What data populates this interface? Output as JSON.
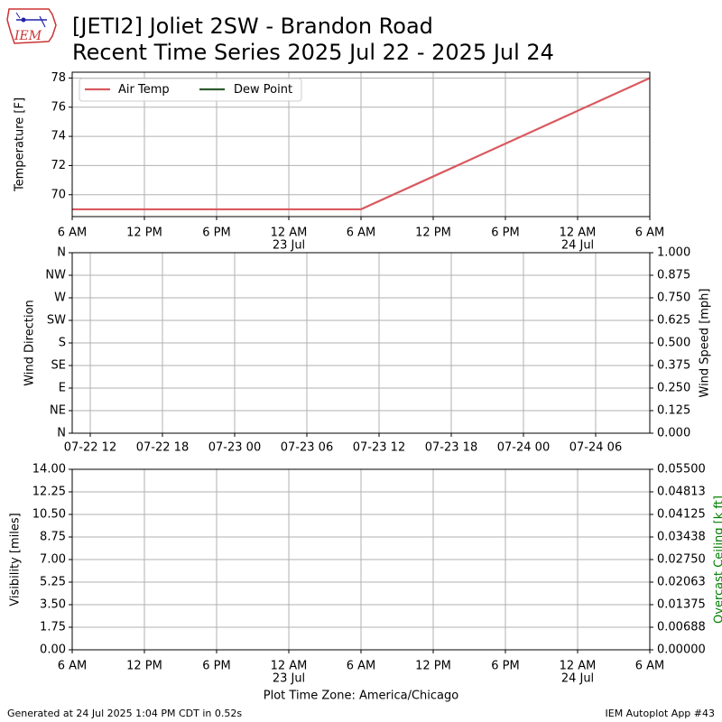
{
  "title_line1": "[JETI2] Joliet 2SW - Brandon Road",
  "title_line2": "Recent Time Series 2025 Jul 22 - 2025 Jul 24",
  "logo_text": "IEM",
  "footer_left": "Generated at 24 Jul 2025 1:04 PM CDT in 0.52s",
  "footer_right": "IEM Autoplot App #43",
  "xlabel": "Plot Time Zone: America/Chicago",
  "colors": {
    "air_temp": "#d9595f",
    "dew_point": "#2e5c2e",
    "grid": "#b0b0b0",
    "ceiling_label": "#008000"
  },
  "chart_data": [
    {
      "type": "line",
      "ylabel": "Temperature [F]",
      "ylim": [
        68.5,
        78.4
      ],
      "yticks": [
        70,
        72,
        74,
        76,
        78
      ],
      "xlim_hours": [
        0,
        48
      ],
      "xticks": [
        {
          "h": 0,
          "label": "6 AM",
          "sub": ""
        },
        {
          "h": 6,
          "label": "12 PM",
          "sub": ""
        },
        {
          "h": 12,
          "label": "6 PM",
          "sub": ""
        },
        {
          "h": 18,
          "label": "12 AM",
          "sub": "23 Jul"
        },
        {
          "h": 24,
          "label": "6 AM",
          "sub": ""
        },
        {
          "h": 30,
          "label": "12 PM",
          "sub": ""
        },
        {
          "h": 36,
          "label": "6 PM",
          "sub": ""
        },
        {
          "h": 42,
          "label": "12 AM",
          "sub": "24 Jul"
        },
        {
          "h": 48,
          "label": "6 AM",
          "sub": ""
        }
      ],
      "grid": true,
      "legend": "upper-left",
      "series": [
        {
          "name": "Air Temp",
          "x": [
            0,
            24,
            48
          ],
          "y": [
            69,
            69,
            78
          ]
        },
        {
          "name": "Dew Point",
          "x": [],
          "y": []
        }
      ]
    },
    {
      "type": "scatter",
      "ylabel": "Wind Direction",
      "ylabel_right": "Wind Speed [mph]",
      "ylim": [
        0,
        360
      ],
      "yticks": [
        {
          "v": 0,
          "label": "N"
        },
        {
          "v": 45,
          "label": "NE"
        },
        {
          "v": 90,
          "label": "E"
        },
        {
          "v": 135,
          "label": "SE"
        },
        {
          "v": 180,
          "label": "S"
        },
        {
          "v": 225,
          "label": "SW"
        },
        {
          "v": 270,
          "label": "W"
        },
        {
          "v": 315,
          "label": "NW"
        },
        {
          "v": 360,
          "label": "N"
        }
      ],
      "yticks_right": [
        "0.000",
        "0.125",
        "0.250",
        "0.375",
        "0.500",
        "0.625",
        "0.750",
        "0.875",
        "1.000"
      ],
      "xticks": [
        {
          "h": 1.5,
          "label": "07-22 12"
        },
        {
          "h": 7.5,
          "label": "07-22 18"
        },
        {
          "h": 13.5,
          "label": "07-23 00"
        },
        {
          "h": 19.5,
          "label": "07-23 06"
        },
        {
          "h": 25.5,
          "label": "07-23 12"
        },
        {
          "h": 31.5,
          "label": "07-23 18"
        },
        {
          "h": 37.5,
          "label": "07-24 00"
        },
        {
          "h": 43.5,
          "label": "07-24 06"
        }
      ],
      "grid": true,
      "series": []
    },
    {
      "type": "line",
      "ylabel": "Visibility [miles]",
      "ylabel_right": "Overcast Ceiling [k ft]",
      "ylim": [
        0,
        14
      ],
      "yticks": [
        "0.00",
        "1.75",
        "3.50",
        "5.25",
        "7.00",
        "8.75",
        "10.50",
        "12.25",
        "14.00"
      ],
      "yticks_right": [
        "0.00000",
        "0.00688",
        "0.01375",
        "0.02063",
        "0.02750",
        "0.03438",
        "0.04125",
        "0.04813",
        "0.05500"
      ],
      "grid": true,
      "series": []
    }
  ]
}
